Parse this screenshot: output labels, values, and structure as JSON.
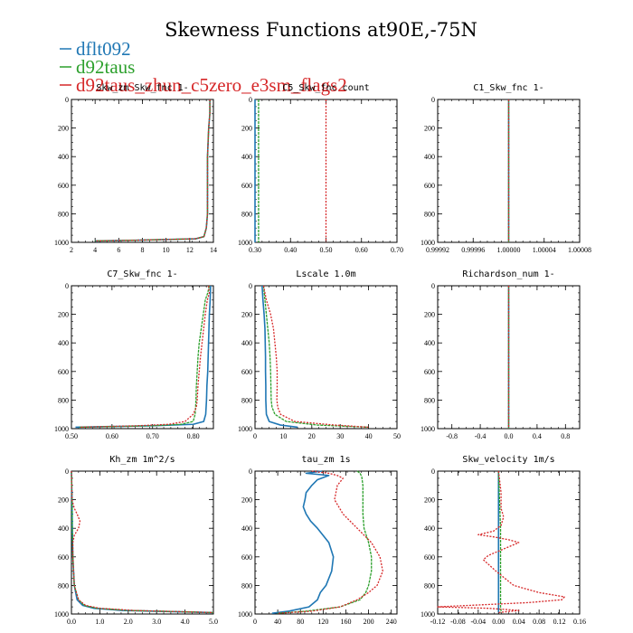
{
  "title": "Skewness Functions at90E,-75N",
  "legend": [
    {
      "name": "dflt092",
      "color": "#1f77b4"
    },
    {
      "name": "d92taus",
      "color": "#2ca02c"
    },
    {
      "name": "d92taus_zhun_c5zero_e3sm_flags2",
      "color": "#d62728"
    }
  ],
  "chart_data": [
    {
      "type": "line",
      "title": "Skw_zm Skw_fnc 1-",
      "xlim": [
        2,
        14
      ],
      "ylim": [
        1000,
        0
      ],
      "xticks": [
        2,
        4,
        6,
        8,
        10,
        12,
        14
      ],
      "xtick_labels": [
        "2",
        "4",
        "6",
        "8",
        "10",
        "12",
        "14"
      ],
      "yticks": [
        0,
        200,
        400,
        600,
        800,
        1000
      ],
      "ytick_labels": [
        "0",
        "200",
        "400",
        "600",
        "800",
        "1000"
      ],
      "series": [
        {
          "name": "dflt092",
          "y": [
            0,
            100,
            200,
            400,
            600,
            800,
            900,
            960,
            975,
            985,
            990
          ],
          "x": [
            13.7,
            13.7,
            13.6,
            13.5,
            13.5,
            13.5,
            13.4,
            13.2,
            12.5,
            7.5,
            4.0
          ]
        },
        {
          "name": "d92taus",
          "y": [
            0,
            100,
            200,
            400,
            600,
            800,
            900,
            960,
            975,
            985,
            990
          ],
          "x": [
            13.7,
            13.7,
            13.6,
            13.5,
            13.5,
            13.5,
            13.4,
            13.2,
            12.5,
            7.5,
            4.0
          ]
        },
        {
          "name": "d92taus_zhun_c5zero_e3sm_flags2",
          "y": [
            0,
            100,
            200,
            400,
            600,
            800,
            900,
            960,
            975,
            985,
            990
          ],
          "x": [
            13.7,
            13.7,
            13.6,
            13.5,
            13.5,
            13.5,
            13.4,
            13.2,
            12.5,
            7.5,
            4.0
          ]
        }
      ]
    },
    {
      "type": "line",
      "title": "C5_Skw_fnc count",
      "xlim": [
        0.3,
        0.7
      ],
      "ylim": [
        1000,
        0
      ],
      "xticks": [
        0.3,
        0.4,
        0.5,
        0.6,
        0.7
      ],
      "xtick_labels": [
        "0.30",
        "0.40",
        "0.50",
        "0.60",
        "0.70"
      ],
      "yticks": [
        0,
        200,
        400,
        600,
        800,
        1000
      ],
      "ytick_labels": [
        "0",
        "200",
        "400",
        "600",
        "800",
        "1000"
      ],
      "series": [
        {
          "name": "dflt092",
          "y": [
            0,
            1000
          ],
          "x": [
            0.3,
            0.3
          ]
        },
        {
          "name": "d92taus",
          "y": [
            0,
            1000
          ],
          "x": [
            0.31,
            0.31
          ]
        },
        {
          "name": "d92taus_zhun_c5zero_e3sm_flags2",
          "y": [
            0,
            1000
          ],
          "x": [
            0.5,
            0.5
          ]
        }
      ]
    },
    {
      "type": "line",
      "title": "C1_Skw_fnc 1-",
      "xlim": [
        0.99992,
        1.00008
      ],
      "ylim": [
        1000,
        0
      ],
      "xticks": [
        0.99992,
        0.99996,
        1.0,
        1.00004,
        1.00008
      ],
      "xtick_labels": [
        "0.99992",
        "0.99996",
        "1.00000",
        "1.00004",
        "1.00008"
      ],
      "yticks": [
        0,
        200,
        400,
        600,
        800,
        1000
      ],
      "ytick_labels": [
        "0",
        "200",
        "400",
        "600",
        "800",
        "1000"
      ],
      "series": [
        {
          "name": "dflt092",
          "y": [
            0,
            1000
          ],
          "x": [
            1.0,
            1.0
          ]
        },
        {
          "name": "d92taus",
          "y": [
            0,
            1000
          ],
          "x": [
            1.0,
            1.0
          ]
        },
        {
          "name": "d92taus_zhun_c5zero_e3sm_flags2",
          "y": [
            0,
            1000
          ],
          "x": [
            1.0,
            1.0
          ]
        }
      ]
    },
    {
      "type": "line",
      "title": "C7_Skw_fnc 1-",
      "xlim": [
        0.5,
        0.85
      ],
      "ylim": [
        1000,
        0
      ],
      "xticks": [
        0.5,
        0.6,
        0.7,
        0.8
      ],
      "xtick_labels": [
        "0.50",
        "0.60",
        "0.70",
        "0.80"
      ],
      "yticks": [
        0,
        200,
        400,
        600,
        800,
        1000
      ],
      "ytick_labels": [
        "0",
        "200",
        "400",
        "600",
        "800",
        "1000"
      ],
      "series": [
        {
          "name": "dflt092",
          "y": [
            0,
            100,
            200,
            300,
            400,
            500,
            600,
            700,
            800,
            900,
            950,
            970,
            980,
            990
          ],
          "x": [
            0.843,
            0.842,
            0.84,
            0.839,
            0.838,
            0.837,
            0.836,
            0.834,
            0.833,
            0.831,
            0.826,
            0.8,
            0.7,
            0.51
          ]
        },
        {
          "name": "d92taus",
          "y": [
            0,
            50,
            100,
            200,
            300,
            400,
            500,
            600,
            700,
            800,
            900,
            950,
            970,
            980,
            990
          ],
          "x": [
            0.84,
            0.836,
            0.83,
            0.825,
            0.82,
            0.815,
            0.812,
            0.81,
            0.808,
            0.807,
            0.805,
            0.8,
            0.77,
            0.7,
            0.52
          ]
        },
        {
          "name": "d92taus_zhun_c5zero_e3sm_flags2",
          "y": [
            0,
            50,
            100,
            200,
            300,
            400,
            500,
            600,
            700,
            800,
            850,
            900,
            950,
            970,
            980,
            990
          ],
          "x": [
            0.838,
            0.84,
            0.835,
            0.83,
            0.826,
            0.822,
            0.818,
            0.815,
            0.812,
            0.81,
            0.808,
            0.8,
            0.78,
            0.74,
            0.66,
            0.52
          ]
        }
      ]
    },
    {
      "type": "line",
      "title": "Lscale 1.0m",
      "xlim": [
        0,
        50
      ],
      "ylim": [
        1000,
        0
      ],
      "xticks": [
        0,
        10,
        20,
        30,
        40,
        50
      ],
      "xtick_labels": [
        "0",
        "10",
        "20",
        "30",
        "40",
        "50"
      ],
      "yticks": [
        0,
        200,
        400,
        600,
        800,
        1000
      ],
      "ytick_labels": [
        "0",
        "200",
        "400",
        "600",
        "800",
        "1000"
      ],
      "series": [
        {
          "name": "dflt092",
          "y": [
            0,
            100,
            200,
            300,
            400,
            500,
            600,
            700,
            800,
            900,
            950,
            975,
            990
          ],
          "x": [
            2.5,
            2.8,
            3.2,
            3.5,
            3.6,
            3.7,
            3.7,
            3.8,
            3.8,
            4.0,
            5.0,
            9.0,
            15.0
          ]
        },
        {
          "name": "d92taus",
          "y": [
            0,
            100,
            200,
            300,
            400,
            500,
            600,
            700,
            800,
            850,
            900,
            950,
            975,
            990
          ],
          "x": [
            3.0,
            3.5,
            4.0,
            4.5,
            5.0,
            5.3,
            5.5,
            5.6,
            5.7,
            6.0,
            7.0,
            11.0,
            22.0,
            40.0
          ]
        },
        {
          "name": "d92taus_zhun_c5zero_e3sm_flags2",
          "y": [
            0,
            100,
            200,
            300,
            400,
            500,
            600,
            700,
            800,
            850,
            900,
            950,
            975,
            990
          ],
          "x": [
            3.0,
            4.0,
            5.5,
            6.5,
            7.0,
            7.5,
            7.8,
            7.8,
            7.7,
            8.0,
            9.0,
            14.0,
            28.0,
            40.0
          ]
        }
      ]
    },
    {
      "type": "line",
      "title": "Richardson_num 1-",
      "xlim": [
        -1,
        1
      ],
      "ylim": [
        1000,
        0
      ],
      "xticks": [
        -0.8,
        -0.4,
        0.0,
        0.4,
        0.8
      ],
      "xtick_labels": [
        "-0.8",
        "-0.4",
        "0.0",
        "0.4",
        "0.8"
      ],
      "yticks": [
        0,
        200,
        400,
        600,
        800,
        1000
      ],
      "ytick_labels": [
        "0",
        "200",
        "400",
        "600",
        "800",
        "1000"
      ],
      "series": [
        {
          "name": "dflt092",
          "y": [
            0,
            1000
          ],
          "x": [
            0.0,
            0.0
          ]
        },
        {
          "name": "d92taus",
          "y": [
            0,
            1000
          ],
          "x": [
            0.0,
            0.0
          ]
        },
        {
          "name": "d92taus_zhun_c5zero_e3sm_flags2",
          "y": [
            0,
            1000
          ],
          "x": [
            0.0,
            0.0
          ]
        }
      ]
    },
    {
      "type": "line",
      "title": "Kh_zm 1m^2/s",
      "xlim": [
        0,
        5
      ],
      "ylim": [
        1000,
        0
      ],
      "xticks": [
        0,
        1,
        2,
        3,
        4,
        5
      ],
      "xtick_labels": [
        "0.0",
        "1.0",
        "2.0",
        "3.0",
        "4.0",
        "5.0"
      ],
      "yticks": [
        0,
        200,
        400,
        600,
        800,
        1000
      ],
      "ytick_labels": [
        "0",
        "200",
        "400",
        "600",
        "800",
        "1000"
      ],
      "series": [
        {
          "name": "dflt092",
          "y": [
            0,
            200,
            400,
            600,
            800,
            900,
            940,
            960,
            975,
            990
          ],
          "x": [
            0.0,
            0.02,
            0.03,
            0.05,
            0.1,
            0.2,
            0.4,
            0.8,
            1.8,
            5.0
          ]
        },
        {
          "name": "d92taus",
          "y": [
            0,
            200,
            400,
            600,
            800,
            900,
            940,
            960,
            975,
            990
          ],
          "x": [
            0.0,
            0.02,
            0.03,
            0.05,
            0.1,
            0.25,
            0.45,
            0.9,
            2.0,
            5.0
          ]
        },
        {
          "name": "d92taus_zhun_c5zero_e3sm_flags2",
          "y": [
            0,
            200,
            260,
            300,
            350,
            400,
            450,
            500,
            600,
            800,
            900,
            940,
            960,
            975,
            990
          ],
          "x": [
            0.0,
            0.02,
            0.1,
            0.2,
            0.3,
            0.25,
            0.1,
            0.05,
            0.05,
            0.1,
            0.25,
            0.5,
            1.0,
            2.2,
            5.0
          ]
        }
      ]
    },
    {
      "type": "line",
      "title": "tau_zm 1s",
      "xlim": [
        0,
        250
      ],
      "ylim": [
        1000,
        0
      ],
      "xticks": [
        0,
        40,
        80,
        120,
        160,
        200,
        240
      ],
      "xtick_labels": [
        "0",
        "40",
        "80",
        "120",
        "160",
        "200",
        "240"
      ],
      "yticks": [
        0,
        200,
        400,
        600,
        800,
        1000
      ],
      "ytick_labels": [
        "0",
        "200",
        "400",
        "600",
        "800",
        "1000"
      ],
      "series": [
        {
          "name": "dflt092",
          "y": [
            0,
            15,
            30,
            60,
            100,
            150,
            200,
            250,
            300,
            350,
            400,
            500,
            600,
            700,
            800,
            850,
            900,
            950,
            980,
            995
          ],
          "x": [
            118,
            90,
            130,
            110,
            100,
            90,
            88,
            85,
            90,
            98,
            110,
            130,
            138,
            135,
            125,
            115,
            110,
            95,
            60,
            30
          ]
        },
        {
          "name": "d92taus",
          "y": [
            0,
            15,
            40,
            100,
            200,
            300,
            400,
            500,
            600,
            700,
            800,
            850,
            900,
            950,
            980,
            995
          ],
          "x": [
            180,
            185,
            188,
            190,
            190,
            190,
            192,
            200,
            205,
            205,
            200,
            195,
            185,
            150,
            90,
            40
          ]
        },
        {
          "name": "d92taus_zhun_c5zero_e3sm_flags2",
          "y": [
            0,
            15,
            30,
            50,
            100,
            200,
            300,
            400,
            500,
            600,
            700,
            800,
            850,
            900,
            950,
            980,
            995
          ],
          "x": [
            100,
            130,
            145,
            155,
            145,
            140,
            155,
            180,
            205,
            220,
            225,
            215,
            200,
            180,
            150,
            100,
            40
          ]
        }
      ]
    },
    {
      "type": "line",
      "title": "Skw_velocity 1m/s",
      "xlim": [
        -0.12,
        0.16
      ],
      "ylim": [
        1000,
        0
      ],
      "xticks": [
        -0.12,
        -0.08,
        -0.04,
        0.0,
        0.04,
        0.08,
        0.12,
        0.16
      ],
      "xtick_labels": [
        "-0.12",
        "-0.08",
        "-0.04",
        "0.00",
        "0.04",
        "0.08",
        "0.12",
        "0.16"
      ],
      "yticks": [
        0,
        200,
        400,
        600,
        800,
        1000
      ],
      "ytick_labels": [
        "0",
        "200",
        "400",
        "600",
        "800",
        "1000"
      ],
      "series": [
        {
          "name": "dflt092",
          "y": [
            0,
            200,
            400,
            600,
            800,
            900,
            950,
            975,
            990
          ],
          "x": [
            0.0,
            0.0,
            0.0,
            0.0,
            0.0,
            0.0,
            0.0,
            0.0,
            0.0
          ]
        },
        {
          "name": "d92taus",
          "y": [
            0,
            200,
            400,
            600,
            800,
            900,
            950,
            975,
            990
          ],
          "x": [
            0.0,
            0.002,
            0.004,
            0.004,
            0.004,
            0.004,
            0.004,
            0.005,
            0.004
          ]
        },
        {
          "name": "d92taus_zhun_c5zero_e3sm_flags2",
          "y": [
            0,
            150,
            260,
            320,
            380,
            420,
            445,
            460,
            480,
            500,
            530,
            560,
            590,
            620,
            700,
            800,
            850,
            880,
            900,
            920,
            940,
            950,
            960,
            975,
            990
          ],
          "x": [
            0.0,
            0.005,
            0.005,
            0.01,
            0.005,
            -0.01,
            -0.04,
            -0.01,
            0.02,
            0.04,
            0.02,
            0.0,
            -0.02,
            -0.03,
            -0.005,
            0.03,
            0.08,
            0.13,
            0.125,
            0.06,
            -0.06,
            -0.12,
            -0.02,
            0.04,
            0.0
          ]
        }
      ]
    }
  ]
}
